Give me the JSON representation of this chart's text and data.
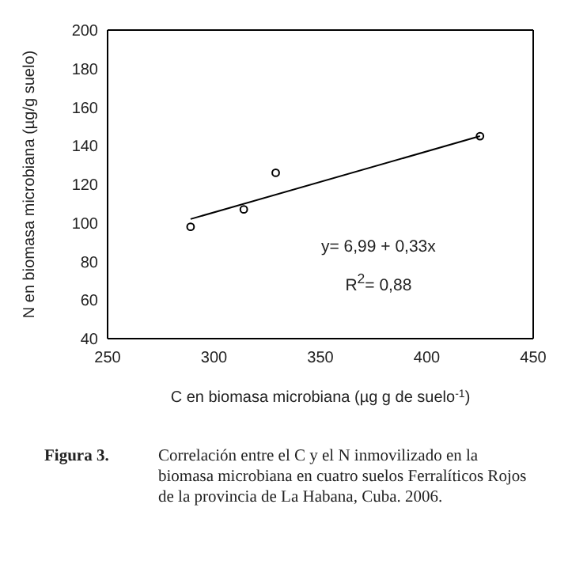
{
  "chart_data": {
    "type": "scatter",
    "xlabel": "C en biomasa microbiana (µg g de suelo$^{-1}$)",
    "ylabel": "N en biomasa microbiana (µg/g suelo)",
    "xlim": [
      250,
      450
    ],
    "xticks": [
      250,
      300,
      350,
      400,
      450
    ],
    "ylim": [
      40,
      200
    ],
    "yticks": [
      40,
      60,
      80,
      100,
      120,
      140,
      160,
      180,
      200
    ],
    "series": [
      {
        "color": "#000000",
        "marker": "circle",
        "x": [
          289,
          314,
          329,
          425
        ],
        "values": [
          98,
          107,
          126,
          145
        ]
      },
      {
        "type": "line",
        "color": "#000000",
        "marker": "none",
        "x": [
          289,
          425
        ],
        "values": [
          102,
          145
        ]
      }
    ],
    "annotations": [
      "y= 6,99 + 0,33x",
      "R$^{2}$= 0,88",
      "Figura 3.",
      "Correlación entre el C y el N inmovilizado en la biomasa microbiana en cuatro suelos Ferralíticos Rojos de la provincia de La Habana, Cuba. 2006."
    ]
  }
}
